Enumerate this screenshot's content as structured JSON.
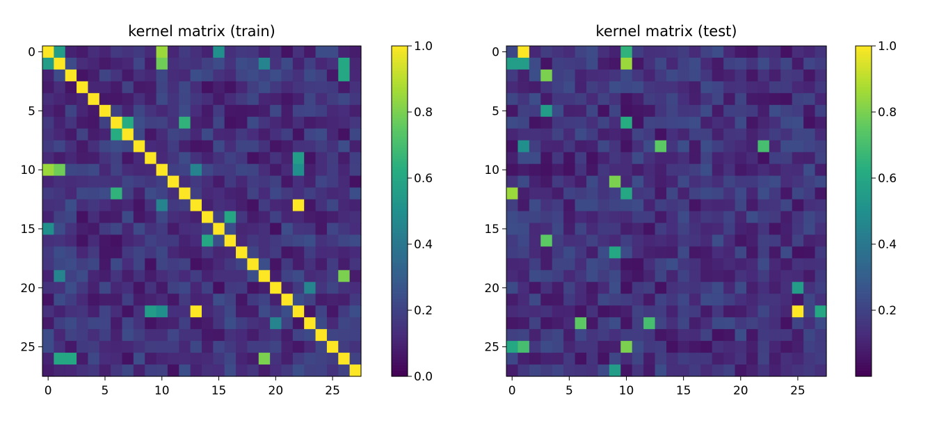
{
  "chart_data": [
    {
      "type": "heatmap",
      "title": "kernel matrix (train)",
      "xlabel": "",
      "ylabel": "",
      "n_rows": 28,
      "n_cols": 28,
      "x_ticks": [
        0,
        5,
        10,
        15,
        20,
        25
      ],
      "y_ticks": [
        0,
        5,
        10,
        15,
        20,
        25
      ],
      "colormap": "viridis",
      "vmin": 0.0,
      "vmax": 1.0,
      "colorbar_ticks": [
        {
          "value": 0.0,
          "label": "0.0"
        },
        {
          "value": 0.2,
          "label": "0.2"
        },
        {
          "value": 0.4,
          "label": "0.4"
        },
        {
          "value": 0.6,
          "label": "0.6"
        },
        {
          "value": 0.8,
          "label": "0.8"
        },
        {
          "value": 1.0,
          "label": "1.0"
        }
      ],
      "base_level": 0.15,
      "random_seed": 1337,
      "symmetric": true,
      "diagonal_value": 1.0,
      "highlights": [
        {
          "row": 0,
          "col": 1,
          "value": 0.5
        },
        {
          "row": 0,
          "col": 10,
          "value": 0.85
        },
        {
          "row": 1,
          "col": 0,
          "value": 0.55
        },
        {
          "row": 1,
          "col": 19,
          "value": 0.55
        },
        {
          "row": 1,
          "col": 26,
          "value": 0.6
        },
        {
          "row": 6,
          "col": 7,
          "value": 0.6
        },
        {
          "row": 6,
          "col": 12,
          "value": 0.65
        },
        {
          "row": 7,
          "col": 6,
          "value": 0.62
        },
        {
          "row": 10,
          "col": 1,
          "value": 0.78
        },
        {
          "row": 12,
          "col": 6,
          "value": 0.65
        },
        {
          "row": 13,
          "col": 22,
          "value": 1.0
        },
        {
          "row": 13,
          "col": 10,
          "value": 0.45
        },
        {
          "row": 15,
          "col": 0,
          "value": 0.5
        },
        {
          "row": 16,
          "col": 14,
          "value": 0.6
        },
        {
          "row": 19,
          "col": 26,
          "value": 0.85
        },
        {
          "row": 19,
          "col": 1,
          "value": 0.45
        },
        {
          "row": 20,
          "col": 23,
          "value": 0.6
        },
        {
          "row": 22,
          "col": 13,
          "value": 1.0
        },
        {
          "row": 22,
          "col": 9,
          "value": 0.55
        },
        {
          "row": 22,
          "col": 10,
          "value": 0.5
        },
        {
          "row": 23,
          "col": 20,
          "value": 0.45
        },
        {
          "row": 26,
          "col": 19,
          "value": 0.8
        },
        {
          "row": 26,
          "col": 2,
          "value": 0.6
        }
      ]
    },
    {
      "type": "heatmap",
      "title": "kernel matrix (test)",
      "xlabel": "",
      "ylabel": "",
      "n_rows": 28,
      "n_cols": 28,
      "x_ticks": [
        0,
        5,
        10,
        15,
        20,
        25
      ],
      "y_ticks": [
        0,
        5,
        10,
        15,
        20,
        25
      ],
      "colormap": "viridis",
      "vmin": 0.0,
      "vmax": 1.0,
      "colorbar_ticks": [
        {
          "value": 0.2,
          "label": "0.2"
        },
        {
          "value": 0.4,
          "label": "0.4"
        },
        {
          "value": 0.6,
          "label": "0.6"
        },
        {
          "value": 0.8,
          "label": "0.8"
        },
        {
          "value": 1.0,
          "label": "1.0"
        }
      ],
      "base_level": 0.15,
      "random_seed": 4242,
      "symmetric": false,
      "highlights": [
        {
          "row": 0,
          "col": 1,
          "value": 1.0
        },
        {
          "row": 0,
          "col": 10,
          "value": 0.65
        },
        {
          "row": 1,
          "col": 0,
          "value": 0.55
        },
        {
          "row": 1,
          "col": 1,
          "value": 0.55
        },
        {
          "row": 1,
          "col": 10,
          "value": 0.85
        },
        {
          "row": 2,
          "col": 3,
          "value": 0.8
        },
        {
          "row": 5,
          "col": 3,
          "value": 0.55
        },
        {
          "row": 6,
          "col": 10,
          "value": 0.62
        },
        {
          "row": 8,
          "col": 13,
          "value": 0.75
        },
        {
          "row": 8,
          "col": 22,
          "value": 0.7
        },
        {
          "row": 8,
          "col": 1,
          "value": 0.5
        },
        {
          "row": 11,
          "col": 9,
          "value": 0.8
        },
        {
          "row": 12,
          "col": 0,
          "value": 0.85
        },
        {
          "row": 12,
          "col": 10,
          "value": 0.6
        },
        {
          "row": 16,
          "col": 3,
          "value": 0.75
        },
        {
          "row": 17,
          "col": 9,
          "value": 0.6
        },
        {
          "row": 20,
          "col": 25,
          "value": 0.55
        },
        {
          "row": 22,
          "col": 25,
          "value": 1.0
        },
        {
          "row": 22,
          "col": 27,
          "value": 0.6
        },
        {
          "row": 23,
          "col": 6,
          "value": 0.75
        },
        {
          "row": 23,
          "col": 12,
          "value": 0.7
        },
        {
          "row": 25,
          "col": 0,
          "value": 0.6
        },
        {
          "row": 25,
          "col": 1,
          "value": 0.7
        },
        {
          "row": 25,
          "col": 10,
          "value": 0.8
        },
        {
          "row": 27,
          "col": 9,
          "value": 0.55
        }
      ]
    }
  ]
}
